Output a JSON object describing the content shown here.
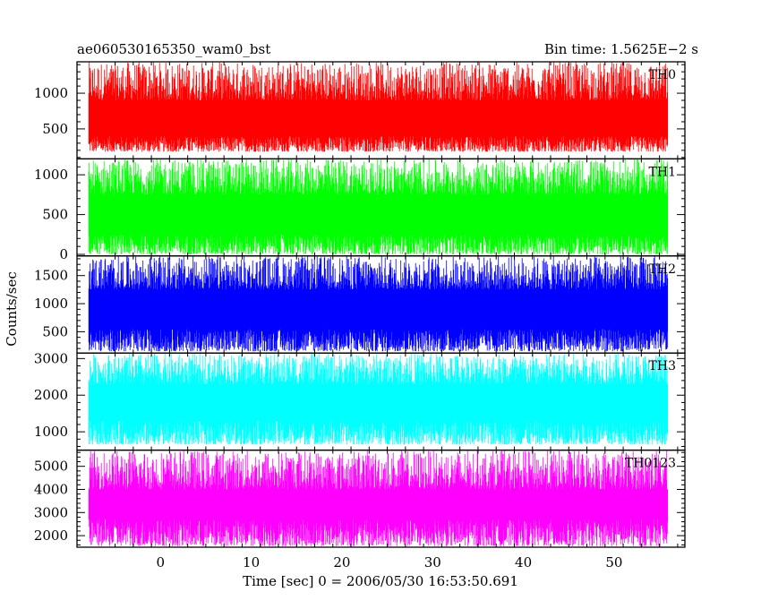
{
  "header": {
    "title": "ae060530165350_wam0_bst",
    "bin_time": "Bin time: 1.5625E−2 s"
  },
  "chart_data": {
    "type": "line",
    "xlabel": "Time [sec] 0 = 2006/05/30 16:53:50.691",
    "ylabel": "Counts/sec",
    "xlim": [
      -9.2,
      57.8
    ],
    "x_ticks": [
      0,
      10,
      20,
      30,
      40,
      50
    ],
    "x_tick_labels": [
      "0",
      "10",
      "20",
      "30",
      "40",
      "50"
    ],
    "data_x_range": [
      -7.9,
      55.9
    ],
    "panels": [
      {
        "name": "TH0",
        "color": "#ff0000",
        "ylim": [
          80,
          1440
        ],
        "y_ticks": [
          500,
          1000
        ],
        "y_tick_labels": [
          "500",
          "1000"
        ],
        "band_low": [
          180,
          400
        ],
        "band_high": [
          900,
          1440
        ],
        "series_mean": 720
      },
      {
        "name": "TH1",
        "color": "#00ff00",
        "ylim": [
          -20,
          1200
        ],
        "y_ticks": [
          0,
          500,
          1000
        ],
        "y_tick_labels": [
          "0",
          "500",
          "1000"
        ],
        "band_low": [
          0,
          250
        ],
        "band_high": [
          750,
          1200
        ],
        "series_mean": 560
      },
      {
        "name": "TH2",
        "color": "#0000ff",
        "ylim": [
          120,
          1850
        ],
        "y_ticks": [
          500,
          1000,
          1500
        ],
        "y_tick_labels": [
          "500",
          "1000",
          "1500"
        ],
        "band_low": [
          150,
          550
        ],
        "band_high": [
          1250,
          1850
        ],
        "series_mean": 1000
      },
      {
        "name": "TH3",
        "color": "#00ffff",
        "ylim": [
          500,
          3150
        ],
        "y_ticks": [
          1000,
          2000,
          3000
        ],
        "y_tick_labels": [
          "1000",
          "2000",
          "3000"
        ],
        "band_low": [
          650,
          1300
        ],
        "band_high": [
          2300,
          3150
        ],
        "series_mean": 1700
      },
      {
        "name": "TH0123",
        "color": "#ff00ff",
        "ylim": [
          1500,
          5700
        ],
        "y_ticks": [
          2000,
          3000,
          4000,
          5000
        ],
        "y_tick_labels": [
          "2000",
          "3000",
          "4000",
          "5000"
        ],
        "band_low": [
          1550,
          2700
        ],
        "band_high": [
          4000,
          5700
        ],
        "series_mean": 3500
      }
    ]
  }
}
